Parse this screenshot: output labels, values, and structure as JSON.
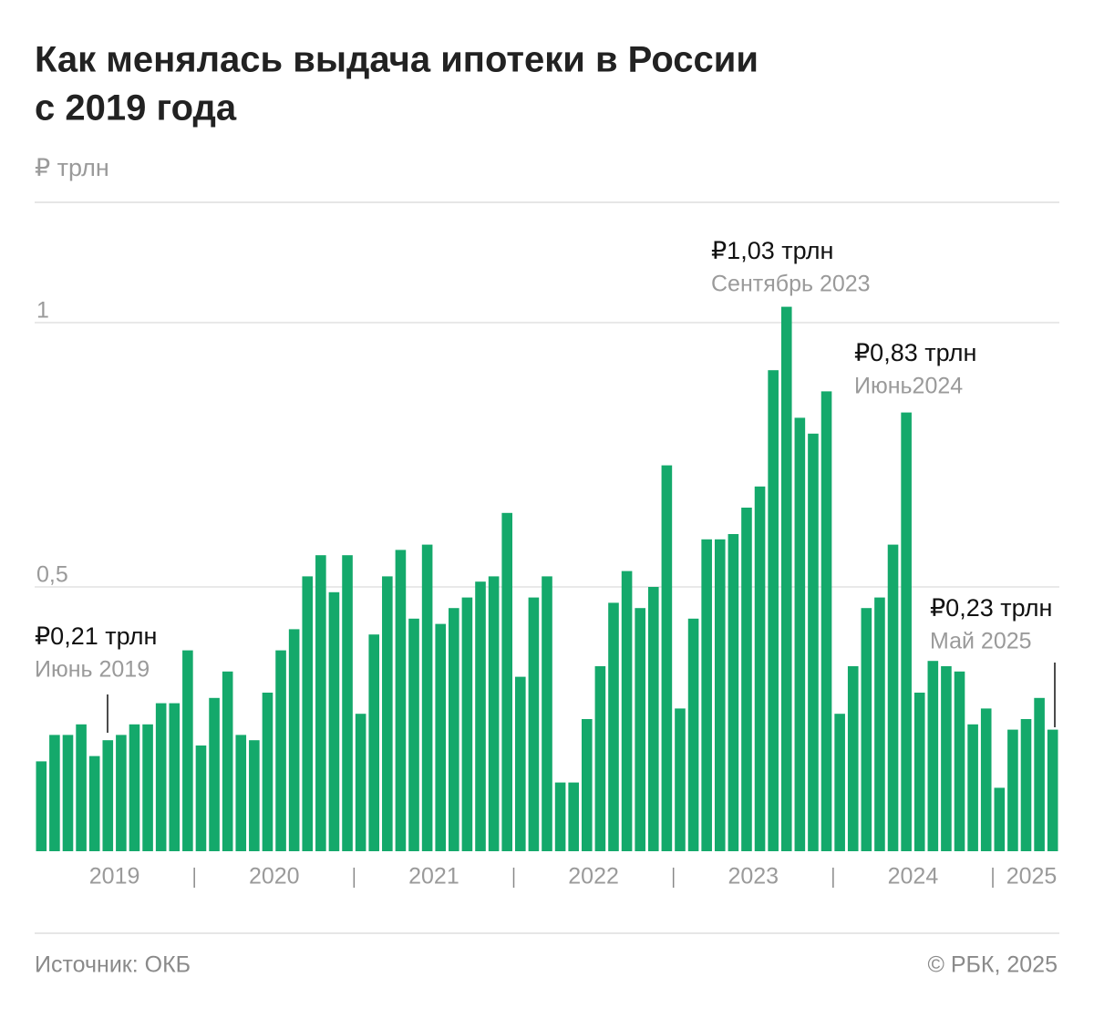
{
  "chart_data": {
    "type": "bar",
    "title": [
      "Как менялась выдача ипотеки в России",
      "с 2019 года"
    ],
    "y_label": "₽ трлн",
    "color": "#14a96b",
    "categories": [
      null,
      null,
      null,
      null,
      null,
      null,
      "2019",
      null,
      null,
      null,
      null,
      null,
      null,
      null,
      null,
      null,
      null,
      null,
      "2020",
      null,
      null,
      null,
      null,
      null,
      null,
      null,
      null,
      null,
      null,
      null,
      "2021",
      null,
      null,
      null,
      null,
      null,
      null,
      null,
      null,
      null,
      null,
      null,
      "2022",
      null,
      null,
      null,
      null,
      null,
      null,
      null,
      null,
      null,
      null,
      null,
      "2023",
      null,
      null,
      null,
      null,
      null,
      null,
      null,
      null,
      null,
      null,
      null,
      "2024",
      null,
      null,
      null,
      null,
      null,
      null,
      null,
      "2025",
      null,
      null
    ],
    "values": [
      0.17,
      0.22,
      0.22,
      0.24,
      0.18,
      0.21,
      0.22,
      0.24,
      0.24,
      0.28,
      0.28,
      0.38,
      0.2,
      0.29,
      0.34,
      0.22,
      0.21,
      0.3,
      0.38,
      0.42,
      0.52,
      0.56,
      0.49,
      0.56,
      0.26,
      0.41,
      0.52,
      0.57,
      0.44,
      0.58,
      0.43,
      0.46,
      0.48,
      0.51,
      0.52,
      0.64,
      0.33,
      0.48,
      0.52,
      0.13,
      0.13,
      0.25,
      0.35,
      0.47,
      0.53,
      0.46,
      0.5,
      0.73,
      0.27,
      0.44,
      0.59,
      0.59,
      0.6,
      0.65,
      0.69,
      0.91,
      1.03,
      0.82,
      0.79,
      0.87,
      0.26,
      0.35,
      0.46,
      0.48,
      0.58,
      0.83,
      0.3,
      0.36,
      0.35,
      0.34,
      0.24,
      0.27,
      0.12,
      0.23,
      0.25,
      0.29,
      0.23
    ],
    "ylim": [
      0,
      1.2
    ],
    "yticks": [
      {
        "value": 0.5,
        "label": "0,5"
      },
      1
    ],
    "grid": true,
    "annotations": [
      {
        "text": "₽0,21 трлн",
        "date": "Июнь 2019"
      },
      {
        "text": "₽1,03 трлн",
        "date": "Сентябрь 2023"
      },
      {
        "text": "₽0,83 трлн",
        "date": "Июнь2024"
      },
      {
        "text": "₽0,23 трлн",
        "date": "Май 2025"
      }
    ],
    "source": "Источник: ОКБ",
    "credit": "© РБК, 2025"
  }
}
